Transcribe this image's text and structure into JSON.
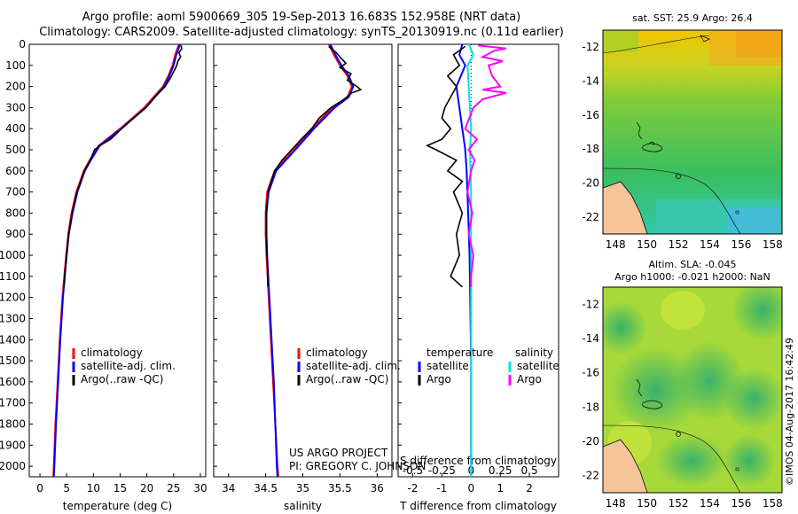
{
  "header": {
    "title_line1": "Argo profile: aoml 5900669_305 19-Sep-2013 16.683S 152.958E (NRT data)",
    "title_line2": "Climatology: CARS2009. Satellite-adjusted climatology: synTS_20130919.nc (0.11d earlier)"
  },
  "credits": {
    "project": "US ARGO PROJECT",
    "pi": "PI: GREGORY C. JOHNSON",
    "stamp": "©IMOS 04-Aug-2017 16:42:49"
  },
  "colors": {
    "climatology": "#ff0000",
    "satellite": "#0000ff",
    "argo": "#000000",
    "sal_satellite": "#00e5e5",
    "sal_argo": "#ff00ff"
  },
  "chart_data": [
    {
      "type": "line",
      "id": "temperature",
      "xlabel": "temperature (deg C)",
      "ylabel": "",
      "xlim": [
        -2,
        31
      ],
      "ylim": [
        2050,
        0
      ],
      "xticks": [
        "0",
        "5",
        "10",
        "15",
        "20",
        "25",
        "30"
      ],
      "yticks": [
        "0",
        "100",
        "200",
        "300",
        "400",
        "500",
        "600",
        "700",
        "800",
        "900",
        "1000",
        "1100",
        "1200",
        "1300",
        "1400",
        "1500",
        "1600",
        "1700",
        "1800",
        "1900",
        "2000"
      ],
      "legend": [
        "climatology",
        "satellite-adj. clim.",
        "Argo(..raw -QC)"
      ],
      "series": [
        {
          "name": "climatology",
          "depth": [
            0,
            50,
            100,
            150,
            200,
            300,
            400,
            480,
            550,
            600,
            700,
            800,
            900,
            1000,
            1200,
            1400,
            1600,
            1800,
            2000,
            2050
          ],
          "values": [
            26.0,
            25.3,
            24.8,
            24.0,
            23.0,
            19.5,
            15.0,
            11.0,
            9.3,
            8.2,
            6.8,
            5.9,
            5.3,
            4.9,
            4.2,
            3.7,
            3.3,
            2.9,
            2.6,
            2.5
          ]
        },
        {
          "name": "satellite-adj. clim.",
          "depth": [
            0,
            50,
            100,
            150,
            200,
            300,
            400,
            480,
            550,
            600,
            700,
            800,
            900,
            1000,
            1200,
            1400,
            1600,
            1800,
            2000,
            2050
          ],
          "values": [
            26.2,
            25.5,
            25.0,
            24.2,
            23.2,
            19.8,
            15.2,
            11.2,
            9.5,
            8.4,
            7.0,
            6.1,
            5.4,
            5.0,
            4.3,
            3.8,
            3.4,
            3.0,
            2.7,
            2.6
          ]
        },
        {
          "name": "Argo",
          "depth": [
            5,
            20,
            40,
            60,
            80,
            100,
            130,
            160,
            200,
            250,
            300,
            350,
            400,
            450,
            480,
            500,
            550,
            600,
            700,
            800,
            900,
            1000,
            1100,
            1150
          ],
          "values": [
            26.4,
            26.5,
            26.0,
            26.3,
            25.8,
            25.6,
            25.0,
            24.4,
            23.4,
            21.5,
            19.8,
            17.5,
            15.3,
            13.2,
            11.2,
            10.2,
            9.4,
            8.3,
            6.9,
            6.0,
            5.4,
            5.0,
            4.6,
            4.5
          ]
        }
      ]
    },
    {
      "type": "line",
      "id": "salinity",
      "xlabel": "salinity",
      "xlim": [
        33.8,
        36.2
      ],
      "ylim": [
        2050,
        0
      ],
      "xticks": [
        "34",
        "34.5",
        "35",
        "35.5",
        "36"
      ],
      "legend": [
        "climatology",
        "satellite-adj. clim.",
        "Argo(..raw -QC)"
      ],
      "series": [
        {
          "name": "climatology",
          "depth": [
            0,
            50,
            100,
            150,
            200,
            250,
            300,
            400,
            500,
            600,
            700,
            800,
            900,
            1000,
            1200,
            1400,
            1600,
            1800,
            2000,
            2050
          ],
          "values": [
            35.35,
            35.42,
            35.5,
            35.6,
            35.66,
            35.6,
            35.4,
            35.12,
            34.88,
            34.62,
            34.52,
            34.5,
            34.5,
            34.51,
            34.54,
            34.57,
            34.6,
            34.63,
            34.66,
            34.67
          ]
        },
        {
          "name": "satellite-adj. clim.",
          "depth": [
            0,
            50,
            100,
            150,
            200,
            250,
            300,
            400,
            500,
            600,
            700,
            800,
            900,
            1000,
            1200,
            1400,
            1600,
            1800,
            2000,
            2050
          ],
          "values": [
            35.37,
            35.44,
            35.52,
            35.62,
            35.68,
            35.62,
            35.43,
            35.15,
            34.9,
            34.64,
            34.54,
            34.51,
            34.51,
            34.52,
            34.55,
            34.58,
            34.61,
            34.63,
            34.65,
            34.66
          ]
        },
        {
          "name": "Argo",
          "depth": [
            10,
            40,
            60,
            90,
            110,
            140,
            170,
            200,
            215,
            230,
            260,
            300,
            350,
            400,
            450,
            500,
            550,
            600,
            700,
            800,
            900,
            1000,
            1100,
            1150
          ],
          "values": [
            35.35,
            35.45,
            35.5,
            35.58,
            35.5,
            35.65,
            35.6,
            35.73,
            35.78,
            35.66,
            35.56,
            35.38,
            35.22,
            35.12,
            34.98,
            34.85,
            34.72,
            34.62,
            34.53,
            34.51,
            34.51,
            34.52,
            34.53,
            34.53
          ]
        }
      ]
    },
    {
      "type": "line",
      "id": "differences",
      "xlabel": "T difference from climatology",
      "xlabel_top": "S difference from climatology",
      "xlim": [
        -2.5,
        3
      ],
      "ylim": [
        2050,
        0
      ],
      "xticks": [
        "-2",
        "-1",
        "0",
        "1",
        "2"
      ],
      "xticks_salinity": [
        "-0.5",
        "-0.25",
        "0",
        "0.25",
        "0.5"
      ],
      "legend_temperature_title": "temperature",
      "legend_salinity_title": "salinity",
      "legend_labels": [
        "satellite",
        "Argo"
      ],
      "series": [
        {
          "name": "T satellite",
          "depth": [
            0,
            50,
            100,
            200,
            300,
            400,
            500,
            600,
            800,
            1000,
            1200,
            1500,
            1800,
            2050
          ],
          "values": [
            -0.3,
            -0.4,
            -0.2,
            -0.5,
            -0.4,
            -0.3,
            -0.2,
            -0.15,
            -0.1,
            -0.05,
            -0.03,
            0,
            0,
            0
          ]
        },
        {
          "name": "T Argo",
          "depth": [
            10,
            50,
            100,
            150,
            200,
            300,
            350,
            400,
            450,
            480,
            500,
            550,
            600,
            650,
            700,
            800,
            900,
            1000,
            1100,
            1150
          ],
          "values": [
            -0.2,
            -0.6,
            -0.4,
            -0.8,
            -0.5,
            -0.9,
            -1.0,
            -0.7,
            -1.0,
            -1.5,
            -1.2,
            -0.5,
            -0.8,
            -0.3,
            -0.6,
            -0.3,
            -0.5,
            -0.4,
            -0.7,
            -0.3
          ]
        },
        {
          "name": "S satellite",
          "depth": [
            0,
            50,
            100,
            200,
            300,
            400,
            500,
            700,
            1000,
            1200,
            1500,
            1800,
            2050
          ],
          "values": [
            -0.02,
            0.02,
            -0.03,
            -0.02,
            -0.01,
            0,
            -0.01,
            0,
            0,
            0,
            0,
            0,
            0
          ]
        },
        {
          "name": "S Argo",
          "depth": [
            5,
            20,
            30,
            60,
            80,
            100,
            150,
            200,
            215,
            230,
            260,
            300,
            400,
            450,
            500,
            550,
            600,
            700,
            800,
            900,
            1000,
            1100,
            1150
          ],
          "values": [
            0.06,
            0.3,
            0.2,
            0.1,
            0.27,
            0.15,
            0.18,
            0.25,
            0.1,
            0.3,
            0.1,
            0.02,
            -0.05,
            0.05,
            -0.02,
            0.03,
            0,
            -0.03,
            0.01,
            -0.02,
            0.02,
            0,
            0
          ]
        }
      ]
    },
    {
      "type": "heatmap",
      "id": "sst_map",
      "title": "sat. SST: 25.9 Argo: 26.4",
      "xticks": [
        "148",
        "150",
        "152",
        "154",
        "156",
        "158"
      ],
      "yticks": [
        "-12",
        "-14",
        "-16",
        "-18",
        "-20",
        "-22"
      ],
      "argo_position": {
        "lon": 152.958,
        "lat": -16.683
      }
    },
    {
      "type": "heatmap",
      "id": "sla_map",
      "title_line1": "Altim. SLA: -0.045",
      "title_line2": "Argo h1000: -0.021 h2000: NaN",
      "xticks": [
        "148",
        "150",
        "152",
        "154",
        "156",
        "158"
      ],
      "yticks": [
        "-12",
        "-14",
        "-16",
        "-18",
        "-20",
        "-22"
      ],
      "argo_position": {
        "lon": 152.958,
        "lat": -16.683
      }
    }
  ]
}
